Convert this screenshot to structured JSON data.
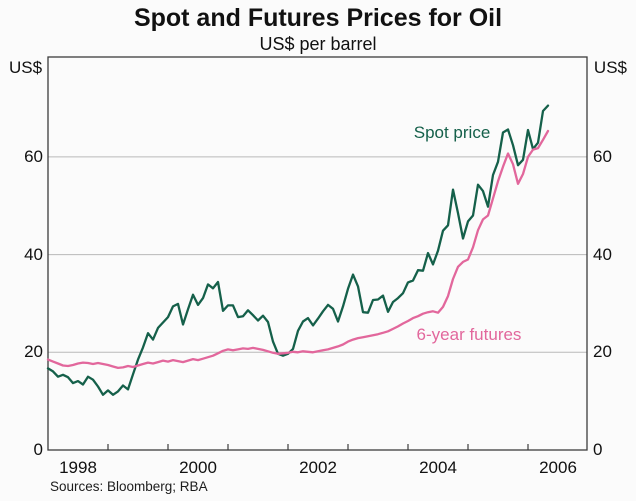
{
  "header": {
    "title": "Spot and Futures Prices for Oil",
    "subtitle": "US$ per barrel"
  },
  "axes": {
    "unit_left": "US$",
    "unit_right": "US$",
    "y_tick_labels": [
      "0",
      "20",
      "40",
      "60"
    ],
    "y_tick_values": [
      0,
      20,
      40,
      60
    ],
    "x_tick_labels": [
      "1998",
      "2000",
      "2002",
      "2004",
      "2006"
    ],
    "x_label_years": [
      1998,
      2000,
      2002,
      2004,
      2006
    ]
  },
  "footer": {
    "source_note": "Sources: Bloomberg; RBA"
  },
  "chart_data": {
    "type": "line",
    "title": "Spot and Futures Prices for Oil",
    "subtitle": "US$ per barrel",
    "xlabel": "",
    "ylabel": "US$ per barrel",
    "x_start_year": 1998,
    "x_frequency": "monthly",
    "x_end": "mid-2006",
    "xlim_years": [
      1998,
      2007
    ],
    "ylim": [
      0,
      80
    ],
    "grid_values": [
      20,
      40,
      60
    ],
    "grid_on": true,
    "x_boundary_tick_years": [
      1999,
      2000,
      2001,
      2002,
      2003,
      2004,
      2005,
      2006
    ],
    "legend_position": "inline-annotations",
    "colors": {
      "spot": "#15604a",
      "futures": "#e2679c",
      "grid": "#b9b9b9",
      "axis": "#3c3c3c"
    },
    "series": [
      {
        "name": "Spot price",
        "color": "#15604a",
        "values": [
          16.7,
          16.1,
          15.0,
          15.4,
          14.9,
          13.7,
          14.1,
          13.4,
          15.0,
          14.4,
          13.0,
          11.3,
          12.2,
          11.3,
          12.0,
          13.2,
          12.4,
          15.5,
          18.5,
          21.0,
          23.9,
          22.6,
          25.0,
          26.1,
          27.2,
          29.4,
          29.9,
          25.7,
          28.8,
          31.8,
          29.7,
          31.1,
          33.9,
          33.1,
          34.4,
          28.5,
          29.6,
          29.6,
          27.2,
          27.4,
          28.6,
          27.6,
          26.5,
          27.5,
          26.2,
          22.2,
          19.7,
          19.3,
          19.7,
          20.7,
          24.4,
          26.3,
          27.0,
          25.5,
          26.9,
          28.4,
          29.7,
          28.9,
          26.3,
          29.4,
          33.0,
          35.9,
          33.5,
          28.2,
          28.1,
          30.7,
          30.8,
          31.6,
          28.3,
          30.3,
          31.1,
          32.1,
          34.3,
          34.7,
          36.8,
          36.7,
          40.3,
          38.0,
          40.8,
          44.9,
          46.0,
          53.3,
          48.5,
          43.3,
          46.8,
          48.0,
          54.3,
          53.0,
          49.8,
          56.3,
          59.0,
          65.0,
          65.6,
          62.4,
          58.3,
          59.4,
          65.5,
          61.6,
          62.9,
          69.4,
          70.5
        ]
      },
      {
        "name": "6-year futures",
        "color": "#e2679c",
        "values": [
          18.5,
          18.1,
          17.7,
          17.3,
          17.2,
          17.4,
          17.7,
          17.9,
          17.8,
          17.6,
          17.8,
          17.6,
          17.4,
          17.1,
          16.8,
          16.9,
          17.2,
          17.0,
          17.3,
          17.6,
          17.9,
          17.7,
          18.0,
          18.3,
          18.1,
          18.4,
          18.2,
          18.0,
          18.3,
          18.6,
          18.4,
          18.7,
          19.0,
          19.3,
          19.8,
          20.3,
          20.6,
          20.4,
          20.6,
          20.8,
          20.7,
          20.9,
          20.7,
          20.5,
          20.2,
          19.9,
          19.7,
          19.8,
          19.9,
          20.1,
          20.0,
          20.2,
          20.1,
          20.0,
          20.2,
          20.4,
          20.6,
          20.9,
          21.2,
          21.6,
          22.2,
          22.6,
          22.9,
          23.1,
          23.3,
          23.5,
          23.7,
          24.0,
          24.3,
          24.8,
          25.3,
          25.9,
          26.4,
          27.0,
          27.4,
          27.9,
          28.2,
          28.4,
          28.1,
          29.3,
          31.5,
          35.0,
          37.5,
          38.5,
          39.0,
          41.5,
          45.0,
          47.2,
          48.0,
          51.5,
          55.0,
          58.0,
          60.7,
          58.5,
          54.5,
          56.5,
          60.0,
          61.5,
          61.8,
          63.5,
          65.3
        ]
      }
    ],
    "annotations": [
      {
        "text": "Spot price",
        "series": 0
      },
      {
        "text": "6-year futures",
        "series": 1
      }
    ]
  }
}
